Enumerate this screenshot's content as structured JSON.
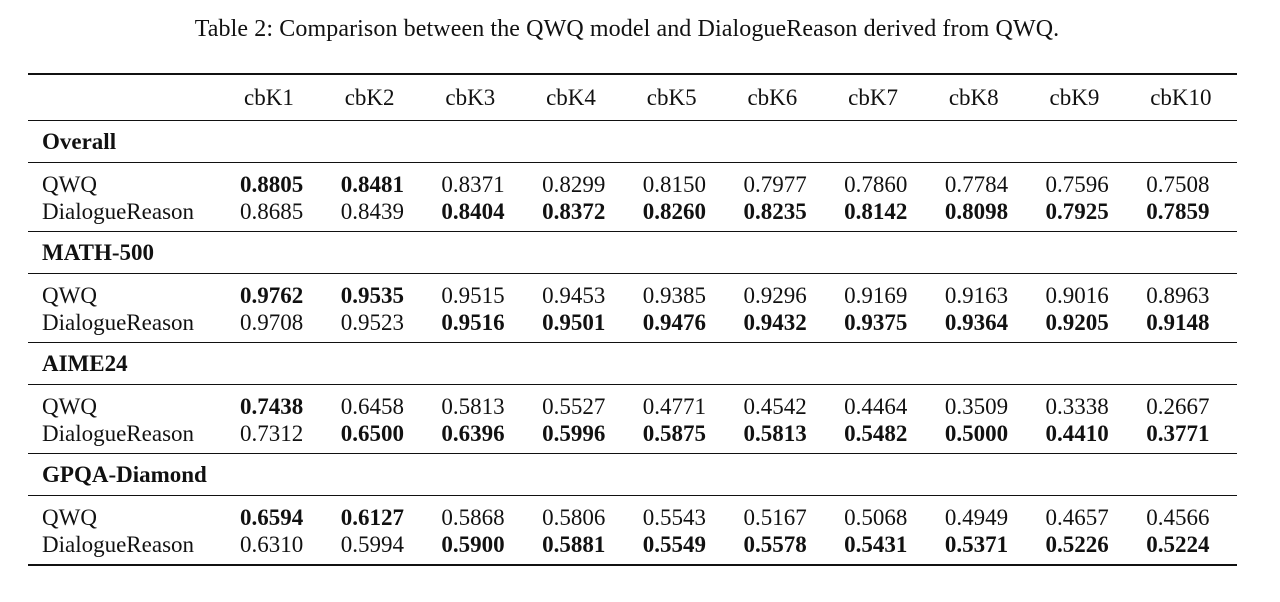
{
  "caption": "Table 2: Comparison between the QWQ model and DialogueReason derived from QWQ.",
  "columns": [
    "cbK1",
    "cbK2",
    "cbK3",
    "cbK4",
    "cbK5",
    "cbK6",
    "cbK7",
    "cbK8",
    "cbK9",
    "cbK10"
  ],
  "sections": [
    {
      "name": "Overall",
      "rows": [
        {
          "model": "QWQ",
          "values": [
            "0.8805",
            "0.8481",
            "0.8371",
            "0.8299",
            "0.8150",
            "0.7977",
            "0.7860",
            "0.7784",
            "0.7596",
            "0.7508"
          ],
          "bold": [
            true,
            true,
            false,
            false,
            false,
            false,
            false,
            false,
            false,
            false
          ]
        },
        {
          "model": "DialogueReason",
          "values": [
            "0.8685",
            "0.8439",
            "0.8404",
            "0.8372",
            "0.8260",
            "0.8235",
            "0.8142",
            "0.8098",
            "0.7925",
            "0.7859"
          ],
          "bold": [
            false,
            false,
            true,
            true,
            true,
            true,
            true,
            true,
            true,
            true
          ]
        }
      ]
    },
    {
      "name": "MATH-500",
      "rows": [
        {
          "model": "QWQ",
          "values": [
            "0.9762",
            "0.9535",
            "0.9515",
            "0.9453",
            "0.9385",
            "0.9296",
            "0.9169",
            "0.9163",
            "0.9016",
            "0.8963"
          ],
          "bold": [
            true,
            true,
            false,
            false,
            false,
            false,
            false,
            false,
            false,
            false
          ]
        },
        {
          "model": "DialogueReason",
          "values": [
            "0.9708",
            "0.9523",
            "0.9516",
            "0.9501",
            "0.9476",
            "0.9432",
            "0.9375",
            "0.9364",
            "0.9205",
            "0.9148"
          ],
          "bold": [
            false,
            false,
            true,
            true,
            true,
            true,
            true,
            true,
            true,
            true
          ]
        }
      ]
    },
    {
      "name": "AIME24",
      "rows": [
        {
          "model": "QWQ",
          "values": [
            "0.7438",
            "0.6458",
            "0.5813",
            "0.5527",
            "0.4771",
            "0.4542",
            "0.4464",
            "0.3509",
            "0.3338",
            "0.2667"
          ],
          "bold": [
            true,
            false,
            false,
            false,
            false,
            false,
            false,
            false,
            false,
            false
          ]
        },
        {
          "model": "DialogueReason",
          "values": [
            "0.7312",
            "0.6500",
            "0.6396",
            "0.5996",
            "0.5875",
            "0.5813",
            "0.5482",
            "0.5000",
            "0.4410",
            "0.3771"
          ],
          "bold": [
            false,
            true,
            true,
            true,
            true,
            true,
            true,
            true,
            true,
            true
          ]
        }
      ]
    },
    {
      "name": "GPQA-Diamond",
      "rows": [
        {
          "model": "QWQ",
          "values": [
            "0.6594",
            "0.6127",
            "0.5868",
            "0.5806",
            "0.5543",
            "0.5167",
            "0.5068",
            "0.4949",
            "0.4657",
            "0.4566"
          ],
          "bold": [
            true,
            true,
            false,
            false,
            false,
            false,
            false,
            false,
            false,
            false
          ]
        },
        {
          "model": "DialogueReason",
          "values": [
            "0.6310",
            "0.5994",
            "0.5900",
            "0.5881",
            "0.5549",
            "0.5578",
            "0.5431",
            "0.5371",
            "0.5226",
            "0.5224"
          ],
          "bold": [
            false,
            false,
            true,
            true,
            true,
            true,
            true,
            true,
            true,
            true
          ]
        }
      ]
    }
  ]
}
